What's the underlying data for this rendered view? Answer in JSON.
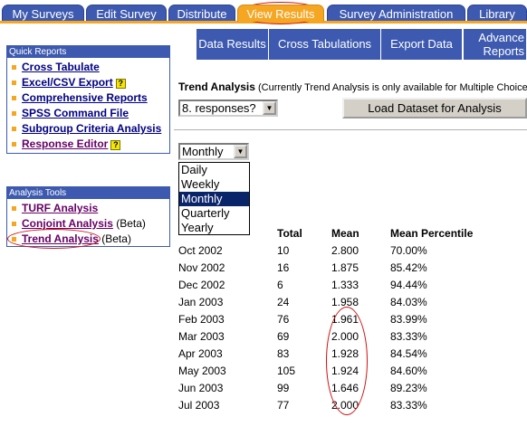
{
  "tabs": [
    {
      "label": "My Surveys",
      "active": false
    },
    {
      "label": "Edit Survey",
      "active": false
    },
    {
      "label": "Distribute",
      "active": false
    },
    {
      "label": "View Results",
      "active": true
    },
    {
      "label": "Survey Administration",
      "active": false
    },
    {
      "label": "Library",
      "active": false
    }
  ],
  "subtabs": [
    {
      "label": "Data Results"
    },
    {
      "label": "Cross Tabulations"
    },
    {
      "label": "Export Data"
    },
    {
      "label_line1": "Advance",
      "label_line2": "Reports"
    }
  ],
  "quick_reports": {
    "title": "Quick Reports",
    "items": [
      {
        "label": "Cross Tabulate",
        "help_icon": false
      },
      {
        "label": "Excel/CSV Export",
        "help_icon": true
      },
      {
        "label": "Comprehensive Reports",
        "help_icon": false
      },
      {
        "label": "SPSS Command File",
        "help_icon": false
      },
      {
        "label": "Subgroup Criteria Analysis",
        "help_icon": false
      },
      {
        "label": "Response Editor",
        "help_icon": true
      }
    ]
  },
  "analysis_tools": {
    "title": "Analysis Tools",
    "items": [
      {
        "label": "TURF Analysis",
        "suffix": ""
      },
      {
        "label": "Conjoint Analysis",
        "suffix": " (Beta)"
      },
      {
        "label": "Trend Analysis",
        "suffix": " (Beta)"
      }
    ]
  },
  "trend": {
    "heading": "Trend Analysis",
    "note": " (Currently Trend Analysis is only available for Multiple Choice Q",
    "question_select": "8. responses?",
    "load_button": "Load Dataset for Analysis",
    "period_select": "Monthly",
    "period_options": [
      "Daily",
      "Weekly",
      "Monthly",
      "Quarterly",
      "Yearly"
    ],
    "selected_option": "Monthly"
  },
  "results": {
    "headers": {
      "total": "Total",
      "mean": "Mean",
      "mean_percentile": "Mean Percentile"
    },
    "rows": [
      {
        "period": "Oct 2002",
        "total": "10",
        "mean": "2.800",
        "pct": "70.00%"
      },
      {
        "period": "Nov 2002",
        "total": "16",
        "mean": "1.875",
        "pct": "85.42%"
      },
      {
        "period": "Dec 2002",
        "total": "6",
        "mean": "1.333",
        "pct": "94.44%"
      },
      {
        "period": "Jan 2003",
        "total": "24",
        "mean": "1.958",
        "pct": "84.03%"
      },
      {
        "period": "Feb 2003",
        "total": "76",
        "mean": "1.961",
        "pct": "83.99%"
      },
      {
        "period": "Mar 2003",
        "total": "69",
        "mean": "2.000",
        "pct": "83.33%"
      },
      {
        "period": "Apr 2003",
        "total": "83",
        "mean": "1.928",
        "pct": "84.54%"
      },
      {
        "period": "May 2003",
        "total": "105",
        "mean": "1.924",
        "pct": "84.60%"
      },
      {
        "period": "Jun 2003",
        "total": "99",
        "mean": "1.646",
        "pct": "89.23%"
      },
      {
        "period": "Jul 2003",
        "total": "77",
        "mean": "2.000",
        "pct": "83.33%"
      }
    ]
  },
  "colors": {
    "tab_blue": "#3d5ab0",
    "tab_orange": "#f5a623",
    "link_blue": "#000080",
    "link_visited": "#660066",
    "highlight_red": "#d01010",
    "selection_navy": "#0a246a"
  }
}
